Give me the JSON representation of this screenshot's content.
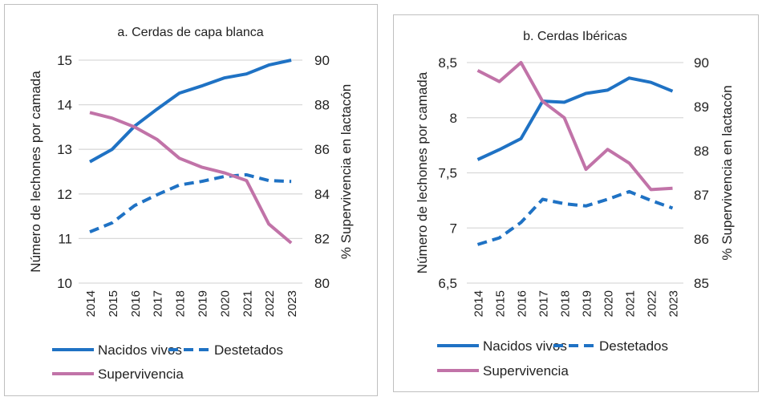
{
  "chart_data": [
    {
      "type": "line",
      "title": "a. Cerdas de capa blanca",
      "x": [
        "2014",
        "2015",
        "2016",
        "2017",
        "2018",
        "2019",
        "2020",
        "2021",
        "2022",
        "2023"
      ],
      "ylabel": "Número de lechones por camada",
      "y2label": "% Supervivencia en lactacón",
      "ylim": [
        10,
        15
      ],
      "yticks": [
        "10",
        "11",
        "12",
        "13",
        "14",
        "15"
      ],
      "y2lim": [
        80,
        90
      ],
      "y2ticks": [
        "80",
        "82",
        "84",
        "86",
        "88",
        "90"
      ],
      "grid": true,
      "legend_position": "bottom",
      "series": [
        {
          "name": "Nacidos vivos",
          "axis": "left",
          "style": "solid",
          "color": "#1f72c4",
          "values": [
            12.72,
            13.0,
            13.52,
            13.9,
            14.26,
            14.42,
            14.6,
            14.69,
            14.89,
            15.0
          ]
        },
        {
          "name": "Destetados",
          "axis": "left",
          "style": "dashed",
          "color": "#1f72c4",
          "values": [
            11.15,
            11.35,
            11.74,
            11.98,
            12.2,
            12.28,
            12.39,
            12.43,
            12.3,
            12.28
          ]
        },
        {
          "name": "Supervivencia",
          "axis": "right",
          "style": "solid",
          "color": "#c173a8",
          "values": [
            87.65,
            87.4,
            87.0,
            86.45,
            85.6,
            85.2,
            84.95,
            84.6,
            82.65,
            81.8
          ]
        }
      ]
    },
    {
      "type": "line",
      "title": "b. Cerdas Ibéricas",
      "x": [
        "2014",
        "2015",
        "2016",
        "2017",
        "2018",
        "2019",
        "2020",
        "2021",
        "2022",
        "2023"
      ],
      "ylabel": "Número de lechones por camada",
      "y2label": "% Supervivencia en lactacón",
      "ylim": [
        6.5,
        8.5
      ],
      "yticks": [
        "6,5",
        "7",
        "7,5",
        "8",
        "8,5"
      ],
      "y2lim": [
        85,
        90
      ],
      "y2ticks": [
        "85",
        "86",
        "87",
        "88",
        "89",
        "90"
      ],
      "grid": true,
      "legend_position": "bottom",
      "series": [
        {
          "name": "Nacidos vivos",
          "axis": "left",
          "style": "solid",
          "color": "#1f72c4",
          "values": [
            7.62,
            7.71,
            7.81,
            8.15,
            8.14,
            8.22,
            8.25,
            8.36,
            8.32,
            8.24
          ]
        },
        {
          "name": "Destetados",
          "axis": "left",
          "style": "dashed",
          "color": "#1f72c4",
          "values": [
            6.85,
            6.91,
            7.05,
            7.26,
            7.22,
            7.2,
            7.26,
            7.33,
            7.25,
            7.18
          ]
        },
        {
          "name": "Supervivencia",
          "axis": "right",
          "style": "solid",
          "color": "#c173a8",
          "values": [
            89.82,
            89.57,
            90.0,
            89.12,
            88.75,
            87.58,
            88.03,
            87.72,
            87.12,
            87.15
          ]
        }
      ]
    }
  ]
}
